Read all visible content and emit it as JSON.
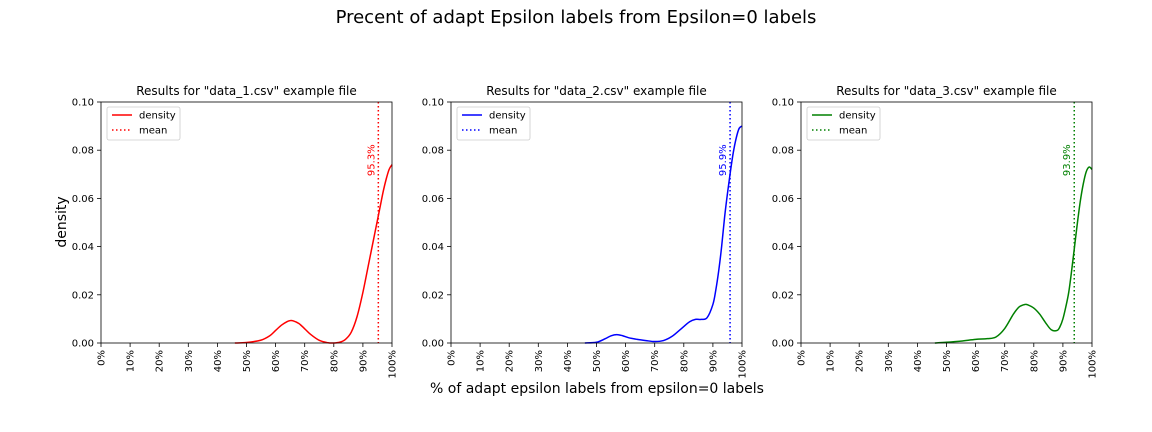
{
  "figure": {
    "suptitle": "Precent of adapt Epsilon labels from Epsilon=0 labels",
    "xlabel": "% of adapt epsilon labels from epsilon=0 labels",
    "ylabel": "density"
  },
  "chart_data": [
    {
      "type": "line",
      "title": "Results for \"data_1.csv\" example file",
      "color": "#ff0000",
      "xlim": [
        0,
        100
      ],
      "ylim": [
        0,
        0.1
      ],
      "x_ticks": [
        "0%",
        "10%",
        "20%",
        "30%",
        "40%",
        "50%",
        "60%",
        "70%",
        "80%",
        "90%",
        "100%"
      ],
      "y_ticks": [
        "0.00",
        "0.02",
        "0.04",
        "0.06",
        "0.08",
        "0.10"
      ],
      "legend": {
        "placement": "upper-left",
        "entries": [
          "density",
          "mean"
        ]
      },
      "series": [
        {
          "name": "density",
          "style": "solid",
          "x": [
            46,
            50,
            55,
            58,
            60,
            62,
            64,
            65,
            66,
            68,
            70,
            72,
            75,
            78,
            80,
            82,
            84,
            86,
            88,
            90,
            92,
            94,
            95,
            96,
            97,
            98,
            99,
            100
          ],
          "y": [
            0,
            0.0002,
            0.0012,
            0.003,
            0.0052,
            0.0074,
            0.0089,
            0.0093,
            0.0092,
            0.0081,
            0.0059,
            0.0036,
            0.0011,
            0.0001,
            0,
            0.0003,
            0.0015,
            0.0045,
            0.011,
            0.021,
            0.033,
            0.045,
            0.051,
            0.057,
            0.063,
            0.068,
            0.072,
            0.074
          ]
        },
        {
          "name": "mean",
          "style": "dotted",
          "value": 95.3,
          "label": "95.3%"
        }
      ]
    },
    {
      "type": "line",
      "title": "Results for \"data_2.csv\" example file",
      "color": "#0000ff",
      "xlim": [
        0,
        100
      ],
      "ylim": [
        0,
        0.1
      ],
      "x_ticks": [
        "0%",
        "10%",
        "20%",
        "30%",
        "40%",
        "50%",
        "60%",
        "70%",
        "80%",
        "90%",
        "100%"
      ],
      "y_ticks": [
        "0.00",
        "0.02",
        "0.04",
        "0.06",
        "0.08",
        "0.10"
      ],
      "legend": {
        "placement": "upper-left",
        "entries": [
          "density",
          "mean"
        ]
      },
      "series": [
        {
          "name": "density",
          "style": "solid",
          "x": [
            46,
            50,
            53,
            55,
            57,
            59,
            61,
            64,
            67,
            70,
            73,
            76,
            79,
            82,
            84,
            86,
            88,
            90,
            91,
            92,
            93,
            94,
            95,
            96,
            97,
            98,
            99,
            100
          ],
          "y": [
            0,
            0.0003,
            0.0018,
            0.003,
            0.0035,
            0.003,
            0.0022,
            0.0015,
            0.001,
            0.0006,
            0.001,
            0.0028,
            0.0058,
            0.0088,
            0.0098,
            0.0098,
            0.0105,
            0.016,
            0.022,
            0.03,
            0.04,
            0.052,
            0.062,
            0.071,
            0.079,
            0.085,
            0.089,
            0.09
          ]
        },
        {
          "name": "mean",
          "style": "dotted",
          "value": 95.9,
          "label": "95.9%"
        }
      ]
    },
    {
      "type": "line",
      "title": "Results for \"data_3.csv\" example file",
      "color": "#008000",
      "xlim": [
        0,
        100
      ],
      "ylim": [
        0,
        0.1
      ],
      "x_ticks": [
        "0%",
        "10%",
        "20%",
        "30%",
        "40%",
        "50%",
        "60%",
        "70%",
        "80%",
        "90%",
        "100%"
      ],
      "y_ticks": [
        "0.00",
        "0.02",
        "0.04",
        "0.06",
        "0.08",
        "0.10"
      ],
      "legend": {
        "placement": "upper-left",
        "entries": [
          "density",
          "mean"
        ]
      },
      "series": [
        {
          "name": "density",
          "style": "solid",
          "x": [
            46,
            50,
            55,
            60,
            64,
            67,
            70,
            73,
            75,
            77,
            78,
            80,
            82,
            84,
            86,
            88,
            89,
            90,
            91,
            92,
            93,
            94,
            95,
            96,
            97,
            98,
            99,
            100
          ],
          "y": [
            0,
            0.0003,
            0.0008,
            0.0015,
            0.0018,
            0.0025,
            0.006,
            0.012,
            0.015,
            0.016,
            0.0158,
            0.0145,
            0.012,
            0.0085,
            0.0055,
            0.0052,
            0.0068,
            0.01,
            0.015,
            0.021,
            0.03,
            0.04,
            0.05,
            0.059,
            0.066,
            0.071,
            0.073,
            0.072
          ]
        },
        {
          "name": "mean",
          "style": "dotted",
          "value": 93.9,
          "label": "93.9%"
        }
      ]
    }
  ]
}
